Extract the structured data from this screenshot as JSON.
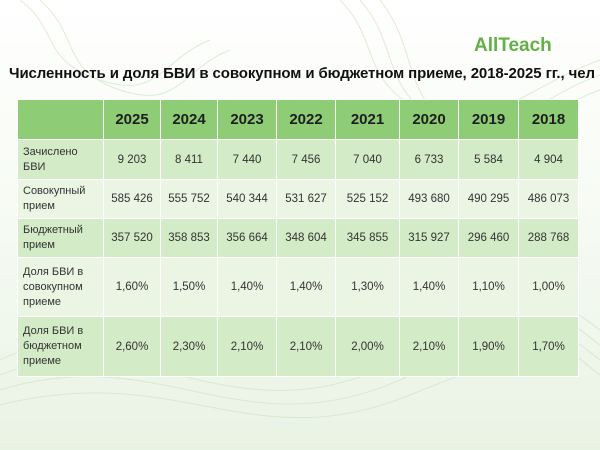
{
  "brand": "AllTeach",
  "title": "Численность и доля БВИ в совокупном и бюджетном приеме, 2018-2025 гг., чел",
  "table": {
    "years": [
      "2025",
      "2024",
      "2023",
      "2022",
      "2021",
      "2020",
      "2019",
      "2018"
    ],
    "rows": [
      {
        "label": "Зачислено БВИ",
        "values": [
          "9 203",
          "8 411",
          "7 440",
          "7 456",
          "7 040",
          "6 733",
          "5 584",
          "4 904"
        ]
      },
      {
        "label": "Совокупный прием",
        "values": [
          "585 426",
          "555 752",
          "540 344",
          "531 627",
          "525 152",
          "493 680",
          "490 295",
          "486 073"
        ]
      },
      {
        "label": "Бюджетный прием",
        "values": [
          "357 520",
          "358 853",
          "356 664",
          "348 604",
          "345 855",
          "315 927",
          "296 460",
          "288 768"
        ]
      },
      {
        "label": "Доля БВИ в совокупном приеме",
        "values": [
          "1,60%",
          "1,50%",
          "1,40%",
          "1,40%",
          "1,30%",
          "1,40%",
          "1,10%",
          "1,00%"
        ]
      },
      {
        "label": "Доля БВИ в бюджетном приеме",
        "values": [
          "2,60%",
          "2,30%",
          "2,10%",
          "2,10%",
          "2,00%",
          "2,10%",
          "1,90%",
          "1,70%"
        ]
      }
    ]
  }
}
